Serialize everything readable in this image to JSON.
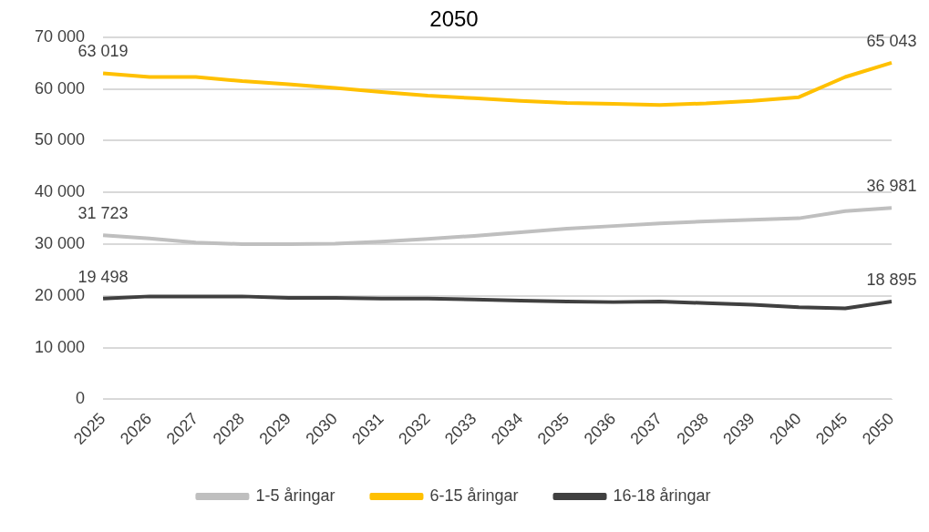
{
  "chart_data": {
    "type": "line",
    "title": "2050",
    "categories": [
      "2025",
      "2026",
      "2027",
      "2028",
      "2029",
      "2030",
      "2031",
      "2032",
      "2033",
      "2034",
      "2035",
      "2036",
      "2037",
      "2038",
      "2039",
      "2040",
      "2045",
      "2050"
    ],
    "series": [
      {
        "name": "1-5 åringar",
        "color": "#bfbfbf",
        "values": [
          31723,
          31100,
          30300,
          30000,
          30000,
          30100,
          30500,
          31000,
          31600,
          32300,
          33000,
          33500,
          34000,
          34400,
          34700,
          35000,
          36400,
          36981
        ],
        "value_labels": [
          "31 723",
          null,
          null,
          null,
          null,
          null,
          null,
          null,
          null,
          null,
          null,
          null,
          null,
          null,
          null,
          null,
          null,
          "36 981"
        ]
      },
      {
        "name": "6-15 åringar",
        "color": "#ffc000",
        "values": [
          63019,
          62300,
          62300,
          61500,
          60900,
          60200,
          59400,
          58700,
          58200,
          57700,
          57300,
          57100,
          56900,
          57200,
          57700,
          58400,
          62300,
          65043
        ],
        "value_labels": [
          "63 019",
          null,
          null,
          null,
          null,
          null,
          null,
          null,
          null,
          null,
          null,
          null,
          null,
          null,
          null,
          null,
          null,
          "65 043"
        ]
      },
      {
        "name": "16-18 åringar",
        "color": "#404040",
        "values": [
          19498,
          19900,
          19900,
          19900,
          19600,
          19600,
          19500,
          19500,
          19300,
          19100,
          18900,
          18800,
          18900,
          18600,
          18300,
          17800,
          17600,
          18895
        ],
        "value_labels": [
          "19 498",
          null,
          null,
          null,
          null,
          null,
          null,
          null,
          null,
          null,
          null,
          null,
          null,
          null,
          null,
          null,
          null,
          "18 895"
        ]
      }
    ],
    "ylim": [
      0,
      70000
    ],
    "yticks": [
      {
        "value": 0,
        "label": "0"
      },
      {
        "value": 10000,
        "label": "10 000"
      },
      {
        "value": 20000,
        "label": "20 000"
      },
      {
        "value": 30000,
        "label": "30 000"
      },
      {
        "value": 40000,
        "label": "40 000"
      },
      {
        "value": 50000,
        "label": "50 000"
      },
      {
        "value": 60000,
        "label": "60 000"
      },
      {
        "value": 70000,
        "label": "70 000"
      }
    ],
    "grid": "y",
    "legend": "bottom",
    "marker": "none",
    "line_style": "solid"
  }
}
